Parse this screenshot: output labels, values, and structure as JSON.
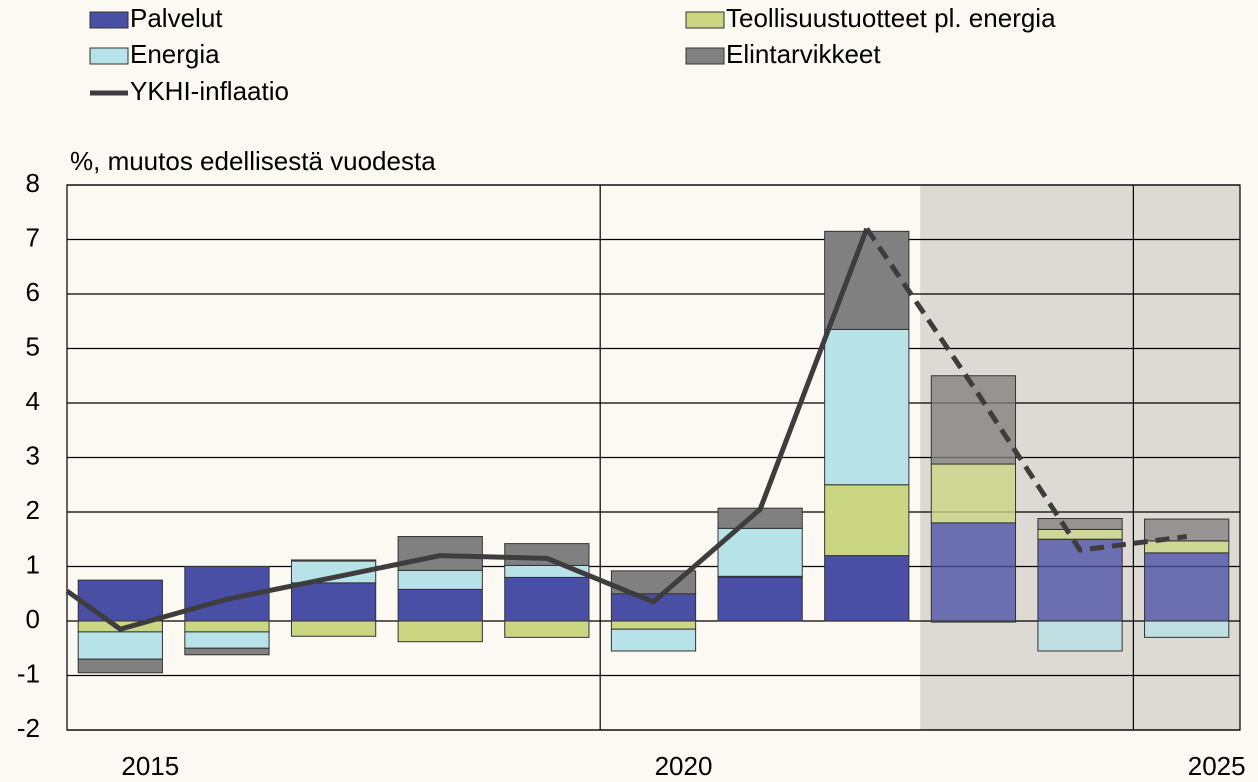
{
  "chart_data": {
    "type": "bar",
    "y_axis_label": "%, muutos edellisestä vuodesta",
    "x": [
      2015,
      2016,
      2017,
      2018,
      2019,
      2020,
      2021,
      2022,
      2023,
      2024,
      2025
    ],
    "xlim": [
      2014.5,
      2025.5
    ],
    "xticks": [
      2015,
      2020,
      2025
    ],
    "vlines": [
      2019.5,
      2024.5
    ],
    "forecast_shade": [
      2022.5,
      2025.5
    ],
    "ylim": [
      -2,
      8
    ],
    "yticks": [
      -2,
      -1,
      0,
      1,
      2,
      3,
      4,
      5,
      6,
      7,
      8
    ],
    "grid": true,
    "stacked": true,
    "series": [
      {
        "name": "Palvelut",
        "color": "#4a4fa6",
        "values": [
          0.75,
          1.0,
          0.7,
          0.58,
          0.8,
          0.5,
          0.8,
          1.2,
          1.8,
          1.5,
          1.25
        ]
      },
      {
        "name": "Teollisuustuotteet pl. energia",
        "color": "#cbd683",
        "values": [
          -0.2,
          -0.2,
          -0.28,
          -0.38,
          -0.3,
          -0.15,
          0.02,
          1.3,
          1.08,
          0.18,
          0.22
        ]
      },
      {
        "name": "Energia",
        "color": "#b6e2e8",
        "values": [
          -0.5,
          -0.3,
          0.4,
          0.35,
          0.22,
          -0.4,
          0.88,
          2.85,
          -0.02,
          -0.55,
          -0.3
        ]
      },
      {
        "name": "Elintarvikkeet",
        "color": "#808080",
        "values": [
          -0.25,
          -0.12,
          0.02,
          0.62,
          0.4,
          0.42,
          0.37,
          1.8,
          1.62,
          0.2,
          0.4
        ]
      }
    ],
    "line": {
      "name": "YKHI-inflaatio",
      "color": "#3d3d3d",
      "x": [
        2014.5,
        2015,
        2016,
        2017,
        2018,
        2019,
        2020,
        2021,
        2022,
        2023,
        2024,
        2025
      ],
      "values": [
        0.55,
        -0.15,
        0.4,
        0.8,
        1.2,
        1.15,
        0.35,
        2.05,
        7.2,
        4.3,
        1.3,
        1.55
      ],
      "dashed_from": 2022
    }
  }
}
